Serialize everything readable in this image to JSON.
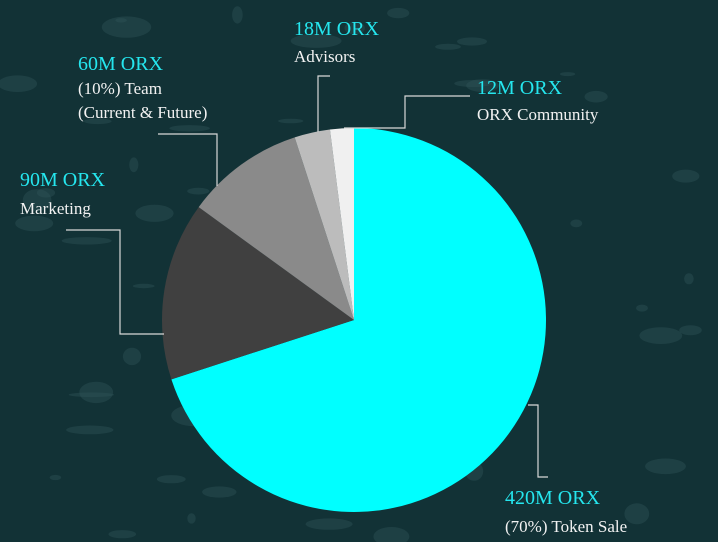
{
  "chart_data": {
    "type": "pie",
    "unit": "M ORX",
    "slices": [
      {
        "amount_label": "420M ORX",
        "lines": [
          "(70%) Token Sale"
        ],
        "value": 420,
        "color": "#00ffff"
      },
      {
        "amount_label": "90M ORX",
        "lines": [
          "Marketing"
        ],
        "value": 90,
        "color": "#404040"
      },
      {
        "amount_label": "60M ORX",
        "lines": [
          "(10%) Team",
          "(Current & Future)"
        ],
        "value": 60,
        "color": "#8a8a8a"
      },
      {
        "amount_label": "18M ORX",
        "lines": [
          "Advisors"
        ],
        "value": 18,
        "color": "#bcbcbc"
      },
      {
        "amount_label": "12M ORX",
        "lines": [
          "ORX Community"
        ],
        "value": 12,
        "color": "#f0f0f0"
      }
    ]
  },
  "colors": {
    "background": "#123236",
    "accent": "#25e6ee",
    "label_text": "#f2f2f2",
    "leader_line": "#d8d8d8"
  }
}
